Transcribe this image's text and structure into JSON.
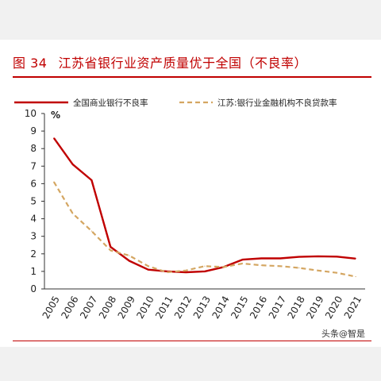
{
  "figure": {
    "label": "图 34",
    "title": "江苏省银行业资产质量优于全国（不良率）"
  },
  "watermark": "头条@智是",
  "chart_data": {
    "type": "line",
    "x": [
      "2005",
      "2006",
      "2007",
      "2008",
      "2009",
      "2010",
      "2011",
      "2012",
      "2013",
      "2014",
      "2015",
      "2016",
      "2017",
      "2018",
      "2019",
      "2020",
      "2021"
    ],
    "unit": "%",
    "ylim": [
      0,
      10
    ],
    "yticks": [
      0,
      1,
      2,
      3,
      4,
      5,
      6,
      7,
      8,
      9,
      10
    ],
    "grid": false,
    "legend_position": "top",
    "series": [
      {
        "name": "全国商业银行不良率",
        "color": "#c00000",
        "style": "solid",
        "values": [
          8.6,
          7.1,
          6.2,
          2.4,
          1.6,
          1.1,
          1.0,
          0.95,
          1.0,
          1.25,
          1.67,
          1.74,
          1.74,
          1.83,
          1.86,
          1.84,
          1.73
        ]
      },
      {
        "name": "江苏:银行业金融机构不良贷款率",
        "color": "#d4a662",
        "style": "dashed",
        "values": [
          6.1,
          4.3,
          3.3,
          2.2,
          1.9,
          1.3,
          0.95,
          1.05,
          1.3,
          1.25,
          1.45,
          1.35,
          1.3,
          1.2,
          1.05,
          0.92,
          0.7
        ]
      }
    ]
  }
}
